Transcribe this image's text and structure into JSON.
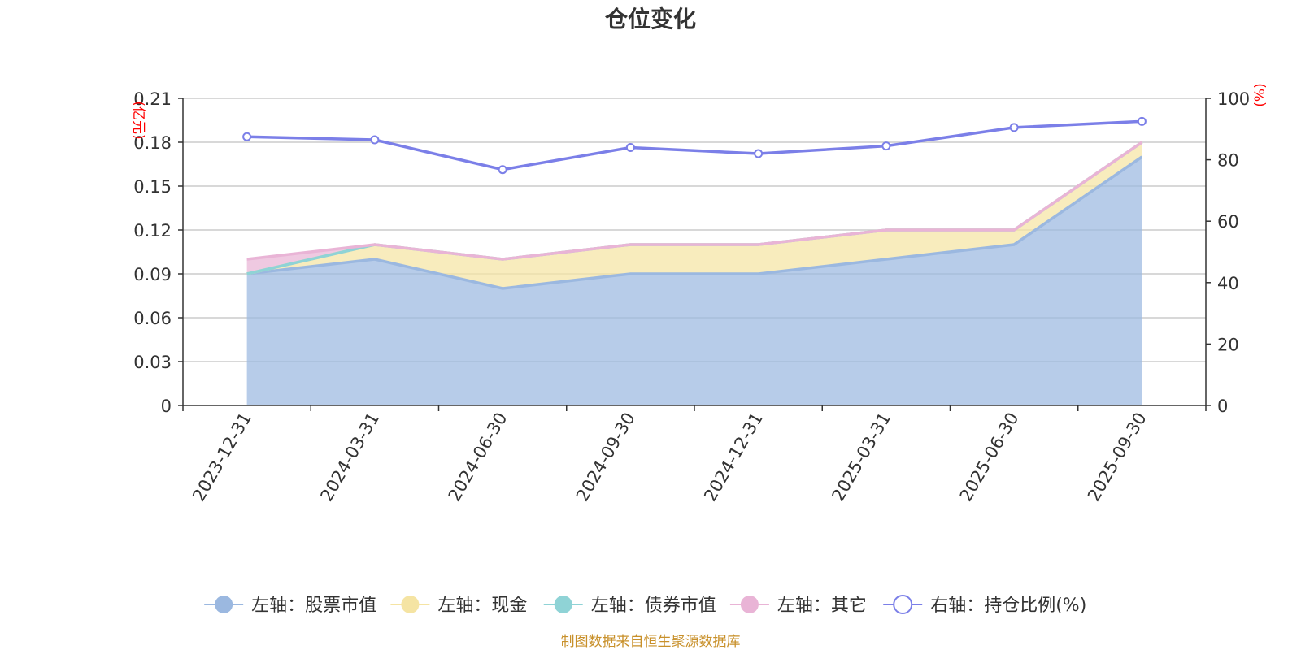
{
  "title": "仓位变化",
  "source_note": "制图数据来自恒生聚源数据库",
  "chart_data": {
    "type": "area",
    "categories": [
      "2023-12-31",
      "2024-03-31",
      "2024-06-30",
      "2024-09-30",
      "2024-12-31",
      "2025-03-31",
      "2025-06-30",
      "2025-09-30"
    ],
    "left_axis": {
      "unit": "(亿元)",
      "ylim": [
        0,
        0.21
      ],
      "ticks": [
        "0",
        "0.03",
        "0.06",
        "0.09",
        "0.12",
        "0.15",
        "0.18",
        "0.21"
      ]
    },
    "right_axis": {
      "unit": "(%)",
      "ylim": [
        0,
        100
      ],
      "ticks": [
        "0",
        "20",
        "40",
        "60",
        "80",
        "100"
      ]
    },
    "series": [
      {
        "name": "左轴：股票市值",
        "axis": "left",
        "stacked": true,
        "color": "#9bb8e0",
        "values": [
          0.09,
          0.1,
          0.08,
          0.09,
          0.09,
          0.1,
          0.11,
          0.17
        ]
      },
      {
        "name": "左轴：现金",
        "axis": "left",
        "stacked": true,
        "color": "#f5e4a3",
        "values": [
          0.0,
          0.01,
          0.02,
          0.02,
          0.02,
          0.02,
          0.01,
          0.01
        ]
      },
      {
        "name": "左轴：债券市值",
        "axis": "left",
        "stacked": true,
        "color": "#8fd3d6",
        "values": [
          0,
          0,
          0,
          0,
          0,
          0,
          0,
          0
        ]
      },
      {
        "name": "左轴：其它",
        "axis": "left",
        "stacked": true,
        "color": "#e9b4d6",
        "values": [
          0.01,
          0.0,
          0.0,
          0.0,
          0.0,
          0.0,
          0.0,
          0.0
        ]
      },
      {
        "name": "右轴：持仓比例(%)",
        "axis": "right",
        "stacked": false,
        "color": "#7b7fe8",
        "values": [
          87.5,
          86.5,
          76.8,
          84.0,
          82.0,
          84.5,
          90.5,
          92.5
        ]
      }
    ],
    "grid": true,
    "legend_position": "bottom"
  }
}
